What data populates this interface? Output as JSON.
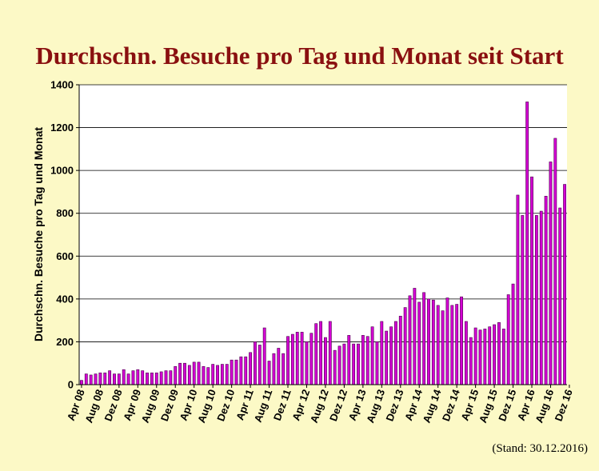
{
  "title": "Durchschn. Besuche pro Tag und Monat seit Start",
  "footnote": "(Stand: 30.12.2016)",
  "colors": {
    "bar_fill": "#d400d4",
    "bar_edge": "#4a004a",
    "title": "#8a1010",
    "background": "#fcf9c6",
    "plot_background": "#ffffff"
  },
  "chart_data": {
    "type": "bar",
    "title": "Durchschn. Besuche pro Tag und Monat seit Start",
    "ylabel": "Durchschn. Besuche pro Tag und Monat",
    "xlabel": "",
    "ylim": [
      0,
      1400
    ],
    "yticks": [
      0,
      200,
      400,
      600,
      800,
      1000,
      1200,
      1400
    ],
    "grid": true,
    "x_tick_labels": [
      "Apr 08",
      "Aug 08",
      "Dez 08",
      "Apr 09",
      "Aug 09",
      "Dez 09",
      "Apr 10",
      "Aug 10",
      "Dez 10",
      "Apr 11",
      "Aug 11",
      "Dez 11",
      "Apr 12",
      "Aug 12",
      "Dez 12",
      "Apr 13",
      "Aug 13",
      "Dez 13",
      "Apr 14",
      "Aug 14",
      "Dez 14",
      "Apr 15",
      "Aug 15",
      "Dez 15",
      "Apr 16",
      "Aug 16",
      "Dez 16"
    ],
    "x_tick_every": 4,
    "values": [
      20,
      50,
      45,
      50,
      55,
      55,
      65,
      50,
      50,
      70,
      50,
      65,
      70,
      65,
      55,
      55,
      55,
      60,
      65,
      65,
      85,
      100,
      100,
      90,
      105,
      105,
      85,
      80,
      95,
      90,
      95,
      95,
      115,
      115,
      130,
      130,
      150,
      200,
      185,
      265,
      110,
      145,
      170,
      145,
      225,
      235,
      245,
      245,
      200,
      240,
      285,
      295,
      220,
      295,
      160,
      180,
      190,
      230,
      190,
      190,
      230,
      225,
      270,
      200,
      295,
      250,
      270,
      295,
      320,
      360,
      415,
      450,
      385,
      430,
      400,
      395,
      370,
      345,
      405,
      370,
      375,
      410,
      295,
      220,
      265,
      255,
      260,
      270,
      280,
      290,
      260,
      420,
      470,
      885,
      790,
      1320,
      970,
      790,
      810,
      880,
      1040,
      1150,
      825,
      935
    ]
  }
}
